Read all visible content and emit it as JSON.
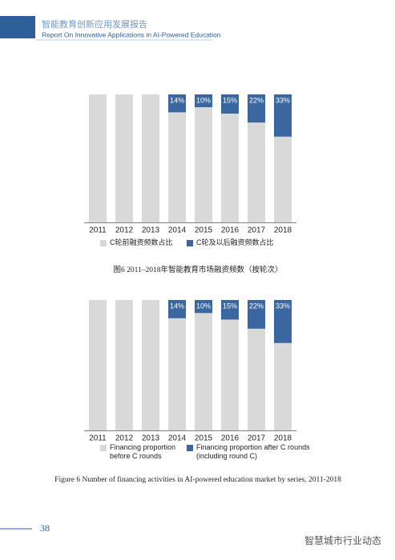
{
  "header": {
    "title": "智能教育创新应用发展报告",
    "subtitle": "Report On Innovative Applications in AI-Powered Education"
  },
  "chart_data": [
    {
      "type": "bar",
      "stacked": true,
      "caption": "图6  2011–2018年智能教育市场融资频数（按轮次）",
      "categories": [
        "2011",
        "2012",
        "2013",
        "2014",
        "2015",
        "2016",
        "2017",
        "2018"
      ],
      "ylim": [
        0,
        100
      ],
      "series": [
        {
          "name": "C轮前融资频数占比",
          "color": "#d9d9d9",
          "values": [
            100,
            100,
            100,
            86,
            90,
            85,
            78,
            67
          ]
        },
        {
          "name": "C轮及以后融资频数占比",
          "color": "#3a67a0",
          "values": [
            0,
            0,
            0,
            14,
            10,
            15,
            22,
            33
          ],
          "value_labels": [
            null,
            null,
            null,
            "14%",
            "10%",
            "15%",
            "22%",
            "33%"
          ]
        }
      ]
    },
    {
      "type": "bar",
      "stacked": true,
      "caption": "Figure 6   Number of financing activities in AI-powered education market by series, 2011-2018",
      "categories": [
        "2011",
        "2012",
        "2013",
        "2014",
        "2015",
        "2016",
        "2017",
        "2018"
      ],
      "ylim": [
        0,
        100
      ],
      "series": [
        {
          "name": "Financing proportion before C rounds",
          "color": "#d9d9d9",
          "values": [
            100,
            100,
            100,
            86,
            90,
            85,
            78,
            67
          ]
        },
        {
          "name": "Financing proportion after C rounds (including round C)",
          "color": "#3a67a0",
          "values": [
            0,
            0,
            0,
            14,
            10,
            15,
            22,
            33
          ],
          "value_labels": [
            null,
            null,
            null,
            "14%",
            "10%",
            "15%",
            "22%",
            "33%"
          ]
        }
      ]
    }
  ],
  "page_number": "38",
  "watermark": "智慧城市行业动态"
}
